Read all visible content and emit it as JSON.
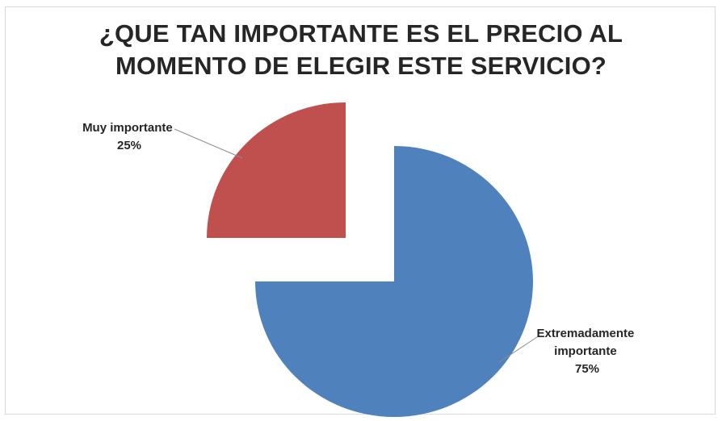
{
  "chart_data": {
    "type": "pie",
    "title_lines": [
      "¿QUE TAN IMPORTANTE ES EL PRECIO AL",
      "MOMENTO DE ELEGIR ESTE SERVICIO?"
    ],
    "slices": [
      {
        "label_lines": [
          "Extremadamente",
          "importante",
          "75%"
        ],
        "value": 75,
        "color": "#4f81bd"
      },
      {
        "label_lines": [
          "Muy importante",
          "25%"
        ],
        "value": 25,
        "color": "#c0504d"
      }
    ]
  }
}
